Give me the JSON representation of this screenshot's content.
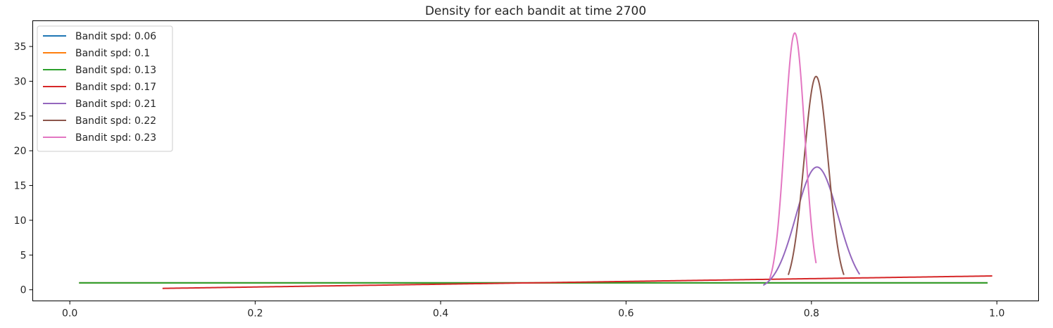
{
  "chart_data": {
    "type": "line",
    "title": "Density for each bandit at time 2700",
    "xlabel": "",
    "ylabel": "",
    "xlim": [
      -0.04,
      1.045
    ],
    "ylim": [
      -1.6,
      38.7
    ],
    "xticks": [
      0.0,
      0.2,
      0.4,
      0.6,
      0.8,
      1.0
    ],
    "xtick_labels": [
      "0.0",
      "0.2",
      "0.4",
      "0.6",
      "0.8",
      "1.0"
    ],
    "yticks": [
      0,
      5,
      10,
      15,
      20,
      25,
      30,
      35
    ],
    "ytick_labels": [
      "0",
      "5",
      "10",
      "15",
      "20",
      "25",
      "30",
      "35"
    ],
    "grid": false,
    "legend_position": "upper-left",
    "series": [
      {
        "name": "Bandit spd: 0.06",
        "color": "#1f77b4",
        "kind": "uniform",
        "x_range": [
          0.01,
          0.99
        ],
        "level": 1.0
      },
      {
        "name": "Bandit spd: 0.1",
        "color": "#ff7f0e",
        "kind": "uniform",
        "x_range": [
          0.01,
          0.99
        ],
        "level": 1.0
      },
      {
        "name": "Bandit spd: 0.13",
        "color": "#2ca02c",
        "kind": "uniform",
        "x_range": [
          0.01,
          0.99
        ],
        "level": 1.0
      },
      {
        "name": "Bandit spd: 0.17",
        "color": "#d62728",
        "kind": "power",
        "x_range": [
          0.1,
          0.995
        ],
        "coef": 2.0,
        "exponent": 1
      },
      {
        "name": "Bandit spd: 0.21",
        "color": "#9467bd",
        "kind": "normal",
        "mean": 0.806,
        "sd": 0.0226,
        "x_range": [
          0.748,
          0.852
        ]
      },
      {
        "name": "Bandit spd: 0.22",
        "color": "#8c564b",
        "kind": "normal",
        "mean": 0.805,
        "sd": 0.013,
        "x_range": [
          0.775,
          0.835
        ]
      },
      {
        "name": "Bandit spd: 0.23",
        "color": "#e377c2",
        "kind": "normal",
        "mean": 0.782,
        "sd": 0.0108,
        "x_range": [
          0.755,
          0.805
        ]
      }
    ]
  }
}
